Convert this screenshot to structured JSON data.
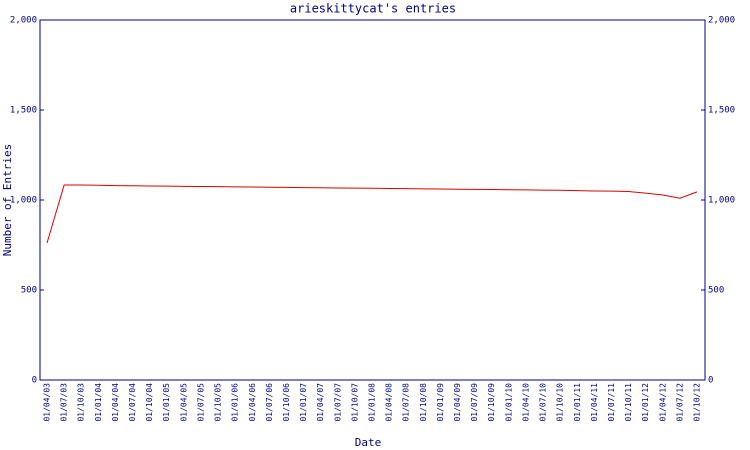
{
  "chart_data": {
    "type": "line",
    "title": "arieskittycat's entries",
    "xlabel": "Date",
    "ylabel": "Number of Entries",
    "categories": [
      "01/04/03",
      "01/07/03",
      "01/10/03",
      "01/01/04",
      "01/04/04",
      "01/07/04",
      "01/10/04",
      "01/01/05",
      "01/04/05",
      "01/07/05",
      "01/10/05",
      "01/01/06",
      "01/04/06",
      "01/07/06",
      "01/10/06",
      "01/01/07",
      "01/04/07",
      "01/07/07",
      "01/10/07",
      "01/01/08",
      "01/04/08",
      "01/07/08",
      "01/10/08",
      "01/01/09",
      "01/04/09",
      "01/07/09",
      "01/10/09",
      "01/01/10",
      "01/04/10",
      "01/07/10",
      "01/10/10",
      "01/01/11",
      "01/04/11",
      "01/07/11",
      "01/10/11",
      "01/01/12",
      "01/04/12",
      "01/07/12",
      "01/10/12"
    ],
    "values": [
      761,
      1083,
      1083,
      1082,
      1080,
      1079,
      1078,
      1077,
      1076,
      1075,
      1074,
      1073,
      1072,
      1071,
      1070,
      1069,
      1068,
      1067,
      1066,
      1065,
      1064,
      1063,
      1062,
      1061,
      1060,
      1059,
      1058,
      1057,
      1056,
      1055,
      1054,
      1052,
      1050,
      1049,
      1047,
      1038,
      1028,
      1010,
      1045
    ],
    "color": "#e00000",
    "ylim": [
      0,
      2000
    ],
    "yticks": [
      0,
      500,
      {
        "value": 1000,
        "label": "1,000"
      },
      {
        "value": 1500,
        "label": "1,500"
      },
      {
        "value": 2000,
        "label": "2,000"
      }
    ],
    "y2lim": [
      0,
      2000
    ],
    "y2ticks": [
      0,
      500,
      {
        "value": 1000,
        "label": "1,000"
      },
      {
        "value": 1500,
        "label": "1,500"
      },
      {
        "value": 2000,
        "label": "2,000"
      }
    ]
  }
}
